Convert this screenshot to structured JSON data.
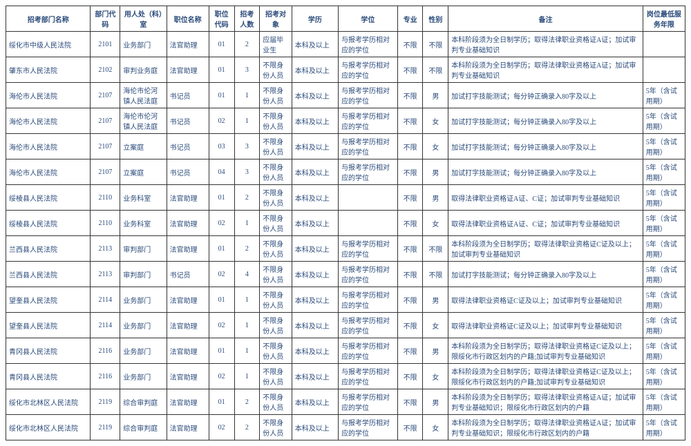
{
  "headers": [
    "招考部门名称",
    "部门代码",
    "用人处（科）室",
    "职位名称",
    "职位代码",
    "招考人数",
    "招考对象",
    "学历",
    "学位",
    "专业",
    "性别",
    "备注",
    "岗位最低服务年限"
  ],
  "rows": [
    [
      "绥化市中级人民法院",
      "2101",
      "业务部门",
      "法官助理",
      "01",
      "2",
      "应届毕业生",
      "本科及以上",
      "与报考学历相对应的学位",
      "不限",
      "不限",
      "本科阶段须为全日制学历；取得法律职业资格证A证；加试审判专业基础知识",
      ""
    ],
    [
      "肇东市人民法院",
      "2102",
      "审判业务庭",
      "法官助理",
      "01",
      "3",
      "不限身份人员",
      "本科及以上",
      "与报考学历相对应的学位",
      "不限",
      "不限",
      "本科阶段须为全日制学历；取得法律职业资格证A证；加试审判专业基础知识",
      ""
    ],
    [
      "海伦市人民法院",
      "2107",
      "海伦市伦河镇人民法庭",
      "书记员",
      "01",
      "1",
      "不限身份人员",
      "本科及以上",
      "与报考学历相对应的学位",
      "不限",
      "男",
      "加试打字技能测试；每分钟正确录入80字及以上",
      "5年（含试用期）"
    ],
    [
      "海伦市人民法院",
      "2107",
      "海伦市伦河镇人民法庭",
      "书记员",
      "02",
      "1",
      "不限身份人员",
      "本科及以上",
      "与报考学历相对应的学位",
      "不限",
      "女",
      "加试打字技能测试；每分钟正确录入80字及以上",
      "5年（含试用期）"
    ],
    [
      "海伦市人民法院",
      "2107",
      "立案庭",
      "书记员",
      "03",
      "3",
      "不限身份人员",
      "本科及以上",
      "与报考学历相对应的学位",
      "不限",
      "女",
      "加试打字技能测试；每分钟正确录入80字及以上",
      "5年（含试用期）"
    ],
    [
      "海伦市人民法院",
      "2107",
      "立案庭",
      "书记员",
      "04",
      "3",
      "不限身份人员",
      "本科及以上",
      "与报考学历相对应的学位",
      "不限",
      "男",
      "加试打字技能测试；每分钟正确录入80字及以上",
      "5年（含试用期）"
    ],
    [
      "绥棱县人民法院",
      "2110",
      "业务科室",
      "法官助理",
      "01",
      "2",
      "不限身份人员",
      "本科及以上",
      "",
      "不限",
      "男",
      "取得法律职业资格证A证、C证；加试审判专业基础知识",
      "5年（含试用期）"
    ],
    [
      "绥棱县人民法院",
      "2110",
      "业务科室",
      "法官助理",
      "02",
      "1",
      "不限身份人员",
      "本科及以上",
      "",
      "不限",
      "女",
      "取得法律职业资格证A证、C证；加试审判专业基础知识",
      "5年（含试用期）"
    ],
    [
      "兰西县人民法院",
      "2113",
      "审判部门",
      "法官助理",
      "01",
      "2",
      "不限身份人员",
      "本科及以上",
      "与报考学历相对应的学位",
      "不限",
      "不限",
      "本科阶段须为全日制学历；取得法律职业资格证C证及以上；加试审判专业基础知识",
      "5年（含试用期）"
    ],
    [
      "兰西县人民法院",
      "2113",
      "审判部门",
      "书记员",
      "02",
      "4",
      "不限身份人员",
      "本科及以上",
      "与报考学历相对应的学位",
      "不限",
      "不限",
      "加试打字技能测试；每分钟正确录入80字及以上",
      "5年（含试用期）"
    ],
    [
      "望奎县人民法院",
      "2114",
      "业务部门",
      "法官助理",
      "01",
      "1",
      "不限身份人员",
      "本科及以上",
      "与报考学历相对应的学位",
      "不限",
      "男",
      "取得法律职业资格证C证及以上；加试审判专业基础知识",
      "5年（含试用期）"
    ],
    [
      "望奎县人民法院",
      "2114",
      "业务部门",
      "法官助理",
      "02",
      "1",
      "不限身份人员",
      "本科及以上",
      "与报考学历相对应的学位",
      "不限",
      "女",
      "取得法律职业资格证C证及以上；加试审判专业基础知识",
      "5年（含试用期）"
    ],
    [
      "青冈县人民法院",
      "2116",
      "业务部门",
      "法官助理",
      "01",
      "1",
      "不限身份人员",
      "本科及以上",
      "与报考学历相对应的学位",
      "不限",
      "男",
      "本科阶段须为全日制学历；取得法律职业资格证C证及以上；限绥化市行政区划内的户籍;加试审判专业基础知识",
      "5年（含试用期）"
    ],
    [
      "青冈县人民法院",
      "2116",
      "业务部门",
      "法官助理",
      "02",
      "1",
      "不限身份人员",
      "本科及以上",
      "与报考学历相对应的学位",
      "不限",
      "女",
      "本科阶段须为全日制学历；取得法律职业资格证C证及以上；限绥化市行政区划内的户籍;加试审判专业基础知识",
      "5年（含试用期）"
    ],
    [
      "绥化市北林区人民法院",
      "2119",
      "综合审判庭",
      "法官助理",
      "01",
      "2",
      "不限身份人员",
      "本科及以上",
      "与报考学历相对应的学位",
      "不限",
      "男",
      "本科阶段须为全日制学历；取得法律职业资格证A证；加试审判专业基础知识；限绥化市行政区划内的户籍",
      "5年（含试用期）"
    ],
    [
      "绥化市北林区人民法院",
      "2119",
      "综合审判庭",
      "法官助理",
      "02",
      "2",
      "不限身份人员",
      "本科及以上",
      "与报考学历相对应的学位",
      "不限",
      "女",
      "本科阶段须为全日制学历；取得法律职业资格证A证；加试审判专业基础知识；限绥化市行政区划内的户籍",
      "5年（含试用期）"
    ]
  ],
  "col_classes": [
    "col-dept",
    "col-code",
    "col-office",
    "col-pos",
    "col-pcode",
    "col-num",
    "col-target",
    "col-edu",
    "col-degree",
    "col-major",
    "col-gender",
    "col-remark",
    "col-service"
  ]
}
